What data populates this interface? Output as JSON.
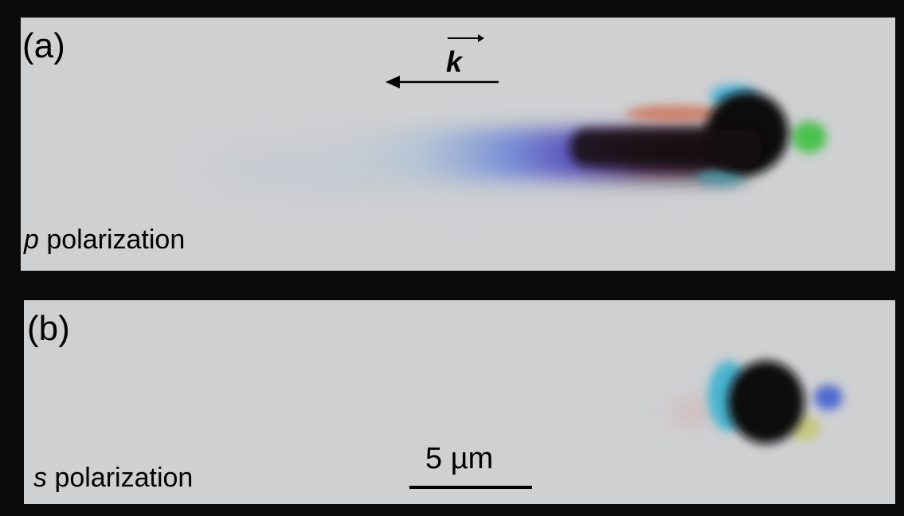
{
  "panel_a": {
    "label": "(a)",
    "polarization_letter": "p",
    "polarization_word": " polarization",
    "wave_vector_label": "k"
  },
  "panel_b": {
    "label": "(b)",
    "polarization_letter": "s",
    "polarization_word": " polarization",
    "scale_bar_label": "5 µm"
  },
  "colors": {
    "background": "#0b0b0b",
    "panel": "#cfd0d2",
    "particle": "#0a0a0a"
  }
}
